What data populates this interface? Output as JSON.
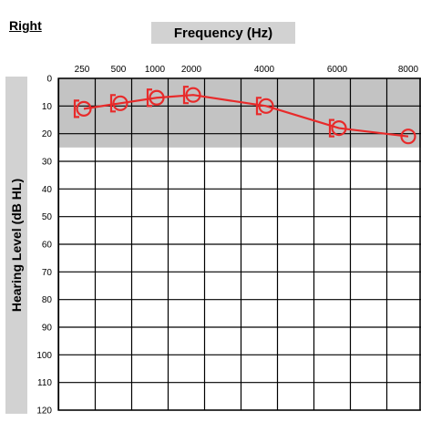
{
  "title": "Right",
  "chart_data": {
    "type": "line",
    "xlabel": "Frequency (Hz)",
    "ylabel": "Hearing Level (dB HL)",
    "x_ticks": [
      "250",
      "500",
      "1000",
      "2000",
      "4000",
      "6000",
      "8000"
    ],
    "y_ticks": [
      "0",
      "10",
      "20",
      "30",
      "40",
      "50",
      "60",
      "70",
      "80",
      "90",
      "100",
      "110",
      "120"
    ],
    "ylim": [
      0,
      120
    ],
    "y_inverted": true,
    "normal_range_band": [
      0,
      25
    ],
    "series": [
      {
        "marker": "circle",
        "color": "#e82a2a",
        "x": [
          "250",
          "500",
          "1000",
          "2000",
          "4000",
          "6000",
          "8000"
        ],
        "y": [
          11,
          9,
          7,
          6,
          10,
          18,
          21
        ]
      },
      {
        "marker": "bracket",
        "color": "#e82a2a",
        "x": [
          "250",
          "500",
          "1000",
          "2000",
          "4000",
          "6000"
        ],
        "y": [
          11,
          9,
          7,
          6,
          10,
          18
        ]
      }
    ]
  }
}
